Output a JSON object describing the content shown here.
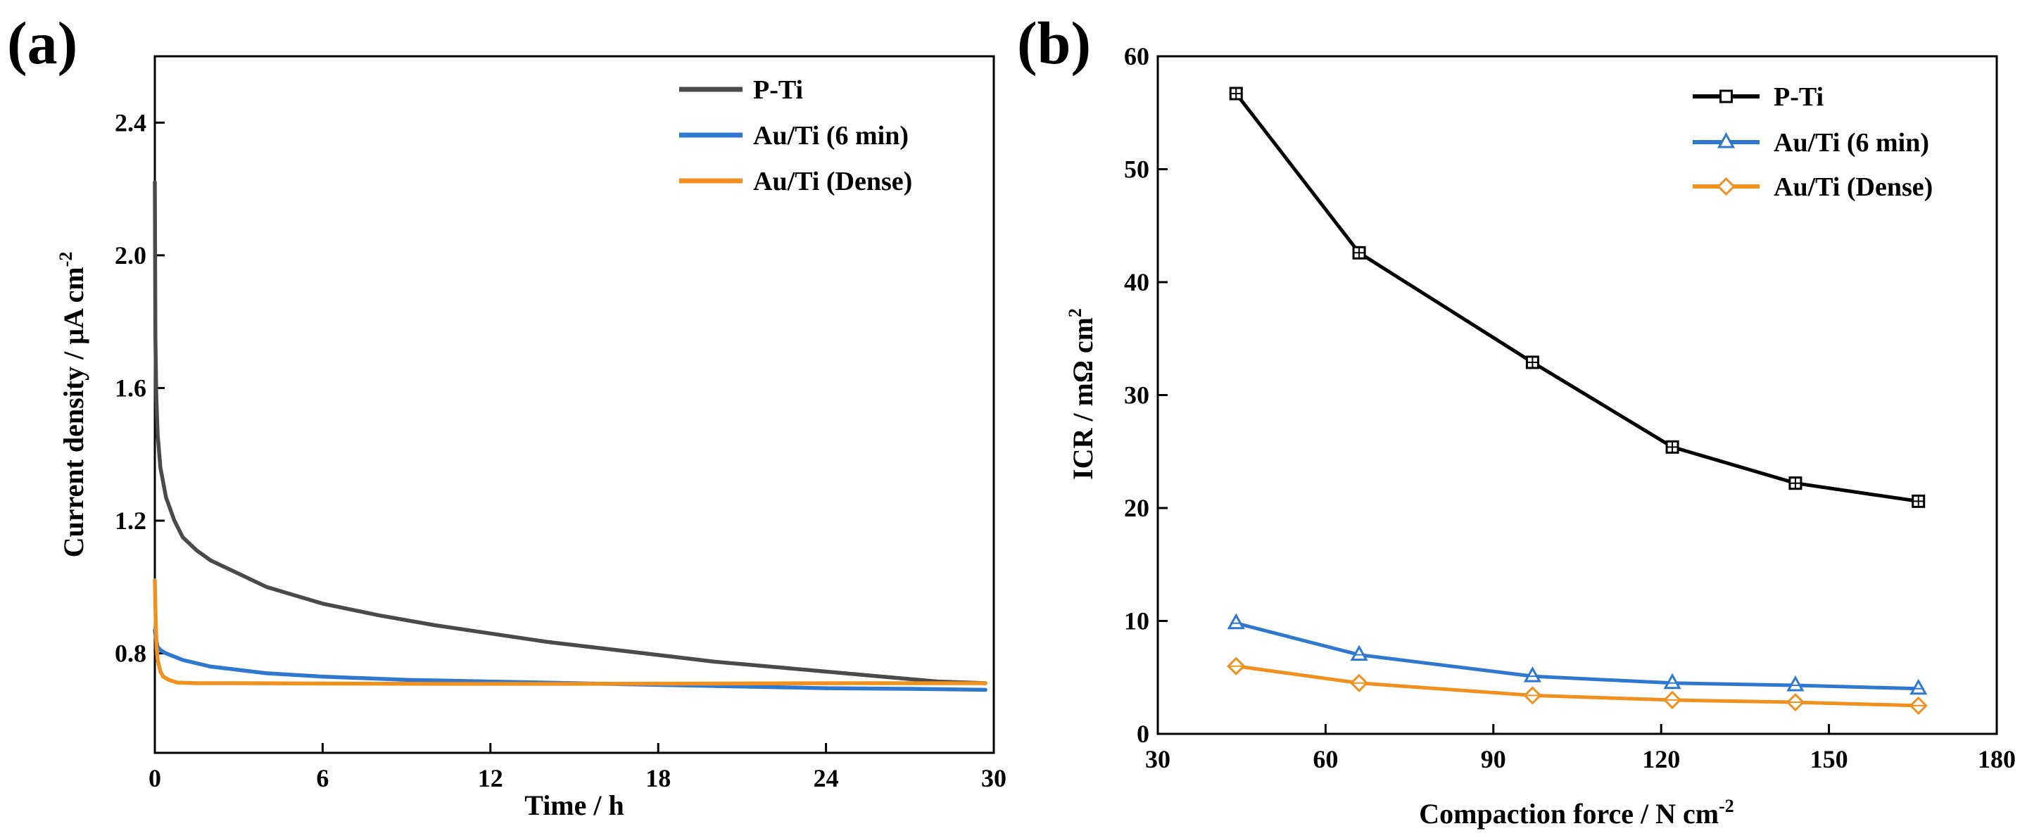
{
  "colors": {
    "p_ti": "#4a4a4a",
    "p_ti_b": "#000000",
    "au_6min": "#2f78d0",
    "au_dense": "#f0901e"
  },
  "chart_data": [
    {
      "panel": "(a)",
      "type": "line",
      "xlabel": "Time / h",
      "ylabel": "Current density / μA cm",
      "ylabel_sup": "-2",
      "xlim": [
        0,
        30
      ],
      "ylim": [
        0.5,
        2.6
      ],
      "xticks": [
        "0",
        "6",
        "12",
        "18",
        "24",
        "30"
      ],
      "yticks": [
        "0.8",
        "1.2",
        "1.6",
        "2.0",
        "2.4"
      ],
      "legend_position": "top-right",
      "series": [
        {
          "name": "P-Ti",
          "color": "#4a4a4a",
          "x": [
            0,
            0.02,
            0.05,
            0.1,
            0.2,
            0.4,
            0.7,
            1,
            1.5,
            2,
            3,
            4,
            5,
            6,
            8,
            10,
            12,
            14,
            16,
            18,
            20,
            22,
            24,
            26,
            28,
            29.7
          ],
          "y": [
            2.22,
            1.75,
            1.58,
            1.46,
            1.36,
            1.27,
            1.2,
            1.15,
            1.11,
            1.08,
            1.04,
            1.0,
            0.975,
            0.95,
            0.915,
            0.885,
            0.86,
            0.835,
            0.815,
            0.795,
            0.775,
            0.76,
            0.745,
            0.73,
            0.715,
            0.71
          ]
        },
        {
          "name": "Au/Ti (6 min)",
          "color": "#2f78d0",
          "x": [
            0,
            0.05,
            0.1,
            0.2,
            0.4,
            0.7,
            1,
            2,
            4,
            6,
            9,
            12,
            15,
            18,
            21,
            24,
            27,
            29.7
          ],
          "y": [
            0.87,
            0.84,
            0.82,
            0.81,
            0.8,
            0.79,
            0.78,
            0.76,
            0.74,
            0.73,
            0.72,
            0.715,
            0.71,
            0.705,
            0.7,
            0.695,
            0.693,
            0.69
          ]
        },
        {
          "name": "Au/Ti (Dense)",
          "color": "#f0901e",
          "x": [
            0,
            0.03,
            0.06,
            0.1,
            0.2,
            0.3,
            0.5,
            0.8,
            1.5,
            3,
            6,
            10,
            15,
            20,
            25,
            29.7
          ],
          "y": [
            1.02,
            0.9,
            0.82,
            0.78,
            0.745,
            0.73,
            0.72,
            0.712,
            0.71,
            0.71,
            0.709,
            0.708,
            0.708,
            0.709,
            0.71,
            0.71
          ]
        }
      ]
    },
    {
      "panel": "(b)",
      "type": "line",
      "xlabel": "Compaction force / N cm",
      "xlabel_sup": "-2",
      "ylabel": "ICR / mΩ cm",
      "ylabel_sup": "2",
      "xlim": [
        30,
        180
      ],
      "ylim": [
        0,
        60
      ],
      "xticks": [
        "30",
        "60",
        "90",
        "120",
        "150",
        "180"
      ],
      "yticks": [
        "0",
        "10",
        "20",
        "30",
        "40",
        "50",
        "60"
      ],
      "legend_position": "top-right",
      "series": [
        {
          "name": "P-Ti",
          "color": "#000000",
          "marker": "square",
          "x": [
            44,
            66,
            97,
            122,
            144,
            166
          ],
          "y": [
            56.7,
            42.6,
            32.9,
            25.4,
            22.2,
            20.6
          ]
        },
        {
          "name": "Au/Ti (6 min)",
          "color": "#2f78d0",
          "marker": "triangle",
          "x": [
            44,
            66,
            97,
            122,
            144,
            166
          ],
          "y": [
            9.8,
            7.0,
            5.1,
            4.5,
            4.3,
            4.0
          ]
        },
        {
          "name": "Au/Ti (Dense)",
          "color": "#f0901e",
          "marker": "diamond",
          "x": [
            44,
            66,
            97,
            122,
            144,
            166
          ],
          "y": [
            6.0,
            4.5,
            3.4,
            3.0,
            2.8,
            2.5
          ]
        }
      ]
    }
  ]
}
